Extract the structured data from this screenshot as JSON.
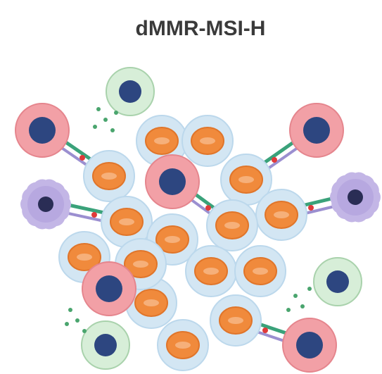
{
  "title": "dMMR-MSI-H"
}
